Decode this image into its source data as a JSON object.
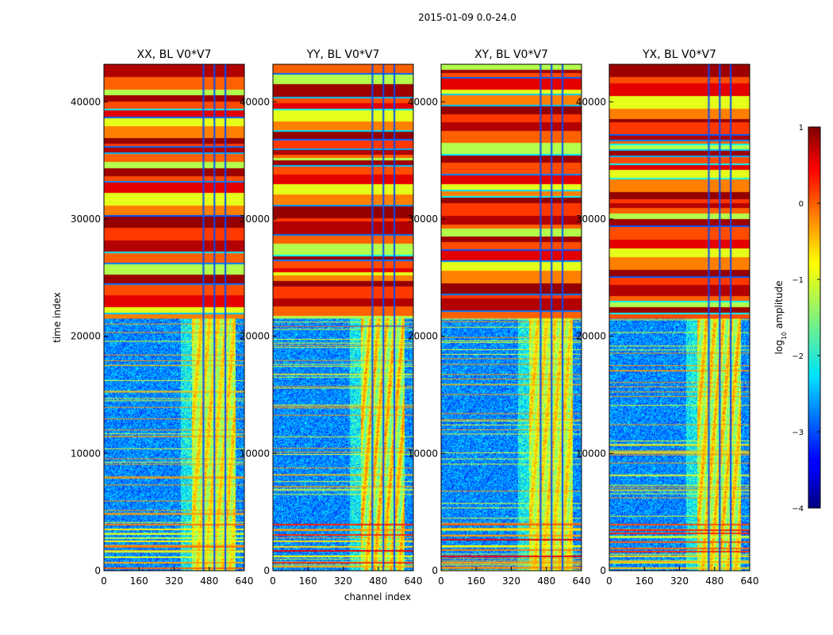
{
  "chart_data": {
    "type": "heatmap",
    "suptitle": "2015-01-09 0.0-24.0",
    "xlabel": "channel index",
    "ylabel": "time index",
    "xlim": [
      0,
      640
    ],
    "ylim": [
      0,
      43200
    ],
    "x_ticks": [
      "0",
      "160",
      "320",
      "480",
      "640"
    ],
    "y_ticks": [
      "0",
      "10000",
      "20000",
      "30000",
      "40000"
    ],
    "x_tick_values": [
      0,
      160,
      320,
      480,
      640
    ],
    "y_tick_values": [
      0,
      10000,
      20000,
      30000,
      40000
    ],
    "panels": [
      {
        "title": "XX, BL V0*V7",
        "pol": "XX",
        "band_brightness": 0.55
      },
      {
        "title": "YY, BL V0*V7",
        "pol": "YY",
        "band_brightness": 0.85
      },
      {
        "title": "XY, BL V0*V7",
        "pol": "XY",
        "band_brightness": 0.55
      },
      {
        "title": "YX, BL V0*V7",
        "pol": "YX",
        "band_brightness": 0.75
      }
    ],
    "colorbar": {
      "label": "log10 amplitude",
      "label_main": "log",
      "label_sub": "10",
      "label_rest": " amplitude",
      "range": [
        -4,
        1
      ],
      "ticks": [
        "1",
        "0",
        "−1",
        "−2",
        "−3",
        "−4"
      ],
      "tick_values": [
        1,
        0,
        -1,
        -2,
        -3,
        -4
      ],
      "colormap": "jet"
    },
    "signal_band_channels": [
      400,
      600
    ],
    "flagged_time_blocks": [
      {
        "start": 21500,
        "end": 43200,
        "note": "saturated / flagged rows, high log amplitude"
      },
      {
        "start": 0,
        "end": 4000,
        "note": "striped rows near start"
      }
    ]
  },
  "colors": {
    "background": "#ffffff",
    "axis": "#000000"
  }
}
